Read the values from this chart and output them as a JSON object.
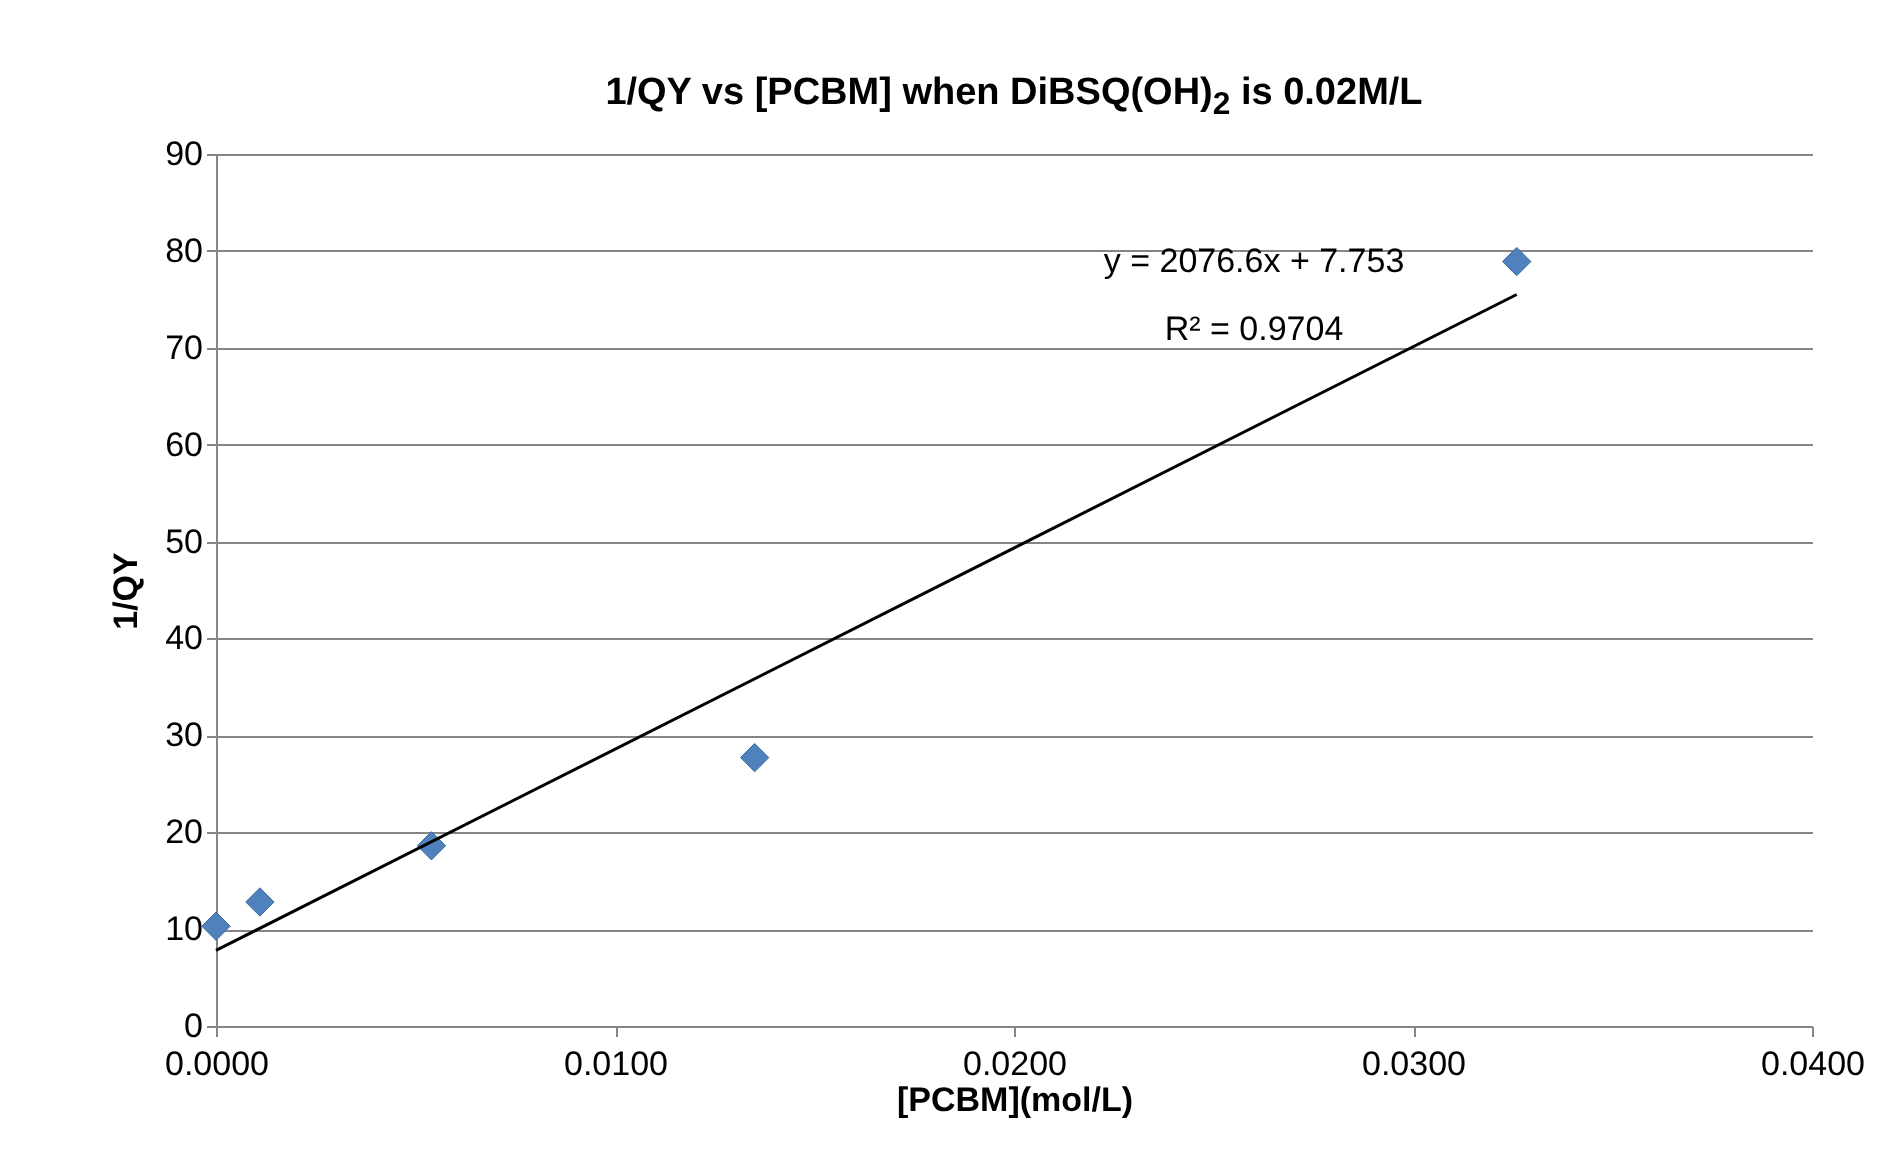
{
  "chart_data": {
    "type": "scatter",
    "title": "1/QY vs [PCBM] when DiBSQ(OH)$_{2}$ is 0.02M/L",
    "xlabel": "[PCBM](mol/L)",
    "ylabel": "1/QY",
    "series": [
      {
        "type": "scatter",
        "marker": "diamond",
        "color": "#4f81bd",
        "x": [
          0,
          0.0011,
          0.0054,
          0.0135,
          0.0326
        ],
        "values": [
          10.3,
          12.8,
          18.6,
          27.7,
          78.9
        ]
      },
      {
        "type": "line",
        "marker": "none",
        "color": "#000000",
        "x": [
          0,
          0.0326
        ],
        "values": [
          7.8,
          75.5
        ]
      }
    ],
    "xlim": [
      0,
      0.04
    ],
    "xticks": [
      {
        "value": 0,
        "label": "0.0000"
      },
      {
        "value": 0.01,
        "label": "0.0100"
      },
      {
        "value": 0.02,
        "label": "0.0200"
      },
      {
        "value": 0.03,
        "label": "0.0300"
      },
      {
        "value": 0.04,
        "label": "0.0400"
      }
    ],
    "ylim": [
      0,
      90
    ],
    "yticks": [
      0,
      10,
      20,
      30,
      40,
      50,
      60,
      70,
      80,
      90
    ],
    "grid": "y",
    "annotations": [
      "y = 2076.6x + 7.753",
      "R² = 0.9704"
    ]
  }
}
